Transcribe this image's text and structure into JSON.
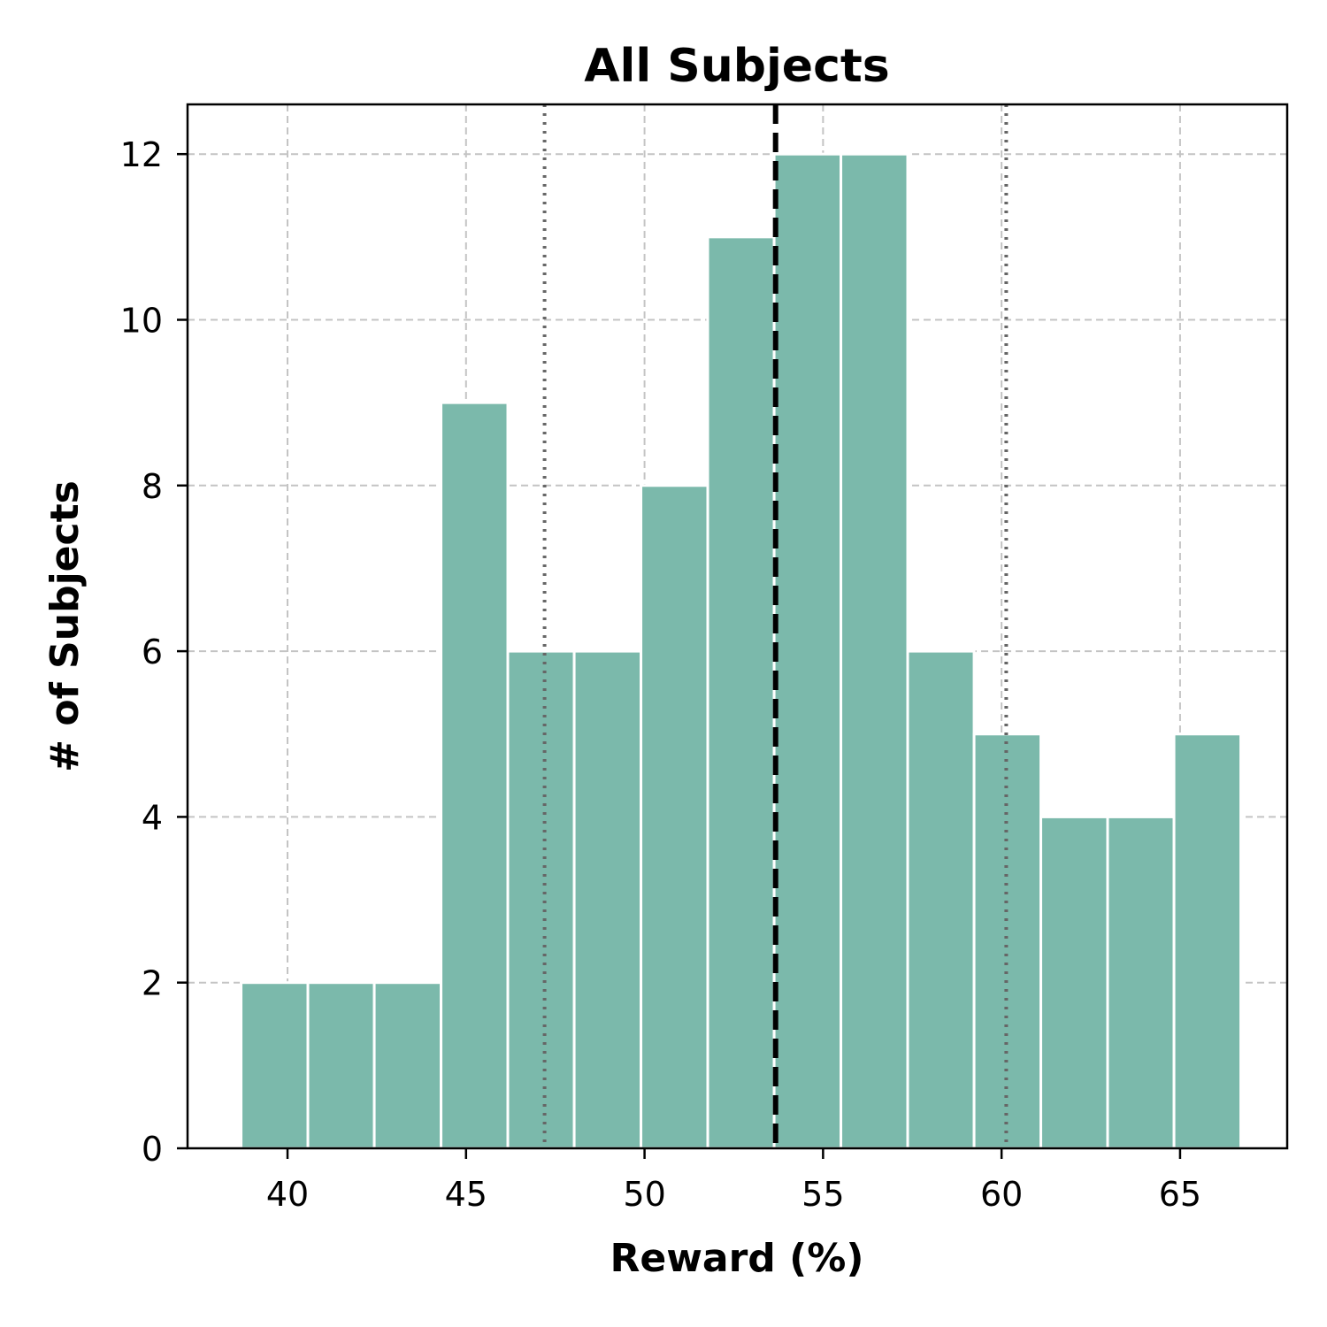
{
  "chart_data": {
    "type": "bar",
    "title": "All Subjects",
    "xlabel": "Reward (%)",
    "ylabel": "# of Subjects",
    "xlim": [
      37.2,
      68.0
    ],
    "ylim": [
      0,
      12.6
    ],
    "xticks": [
      40,
      45,
      50,
      55,
      60,
      65
    ],
    "yticks": [
      0,
      2,
      4,
      6,
      8,
      10,
      12
    ],
    "grid": true,
    "bin_edges": [
      38.7,
      40.57,
      42.43,
      44.3,
      46.17,
      48.03,
      49.9,
      51.77,
      53.63,
      55.5,
      57.37,
      59.23,
      61.1,
      62.97,
      64.83,
      66.7
    ],
    "values": [
      2,
      2,
      2,
      9,
      6,
      6,
      8,
      11,
      12,
      12,
      6,
      5,
      4,
      4,
      5
    ],
    "mean": 53.67,
    "sd_lower": 47.2,
    "sd_upper": 60.13,
    "colors": {
      "bar": "#7bb9ab",
      "bar_edge": "#ffffff",
      "mean_line": "#000000",
      "sd_line": "#666666",
      "grid": "#c4c4c4",
      "axes": "#000000"
    }
  }
}
